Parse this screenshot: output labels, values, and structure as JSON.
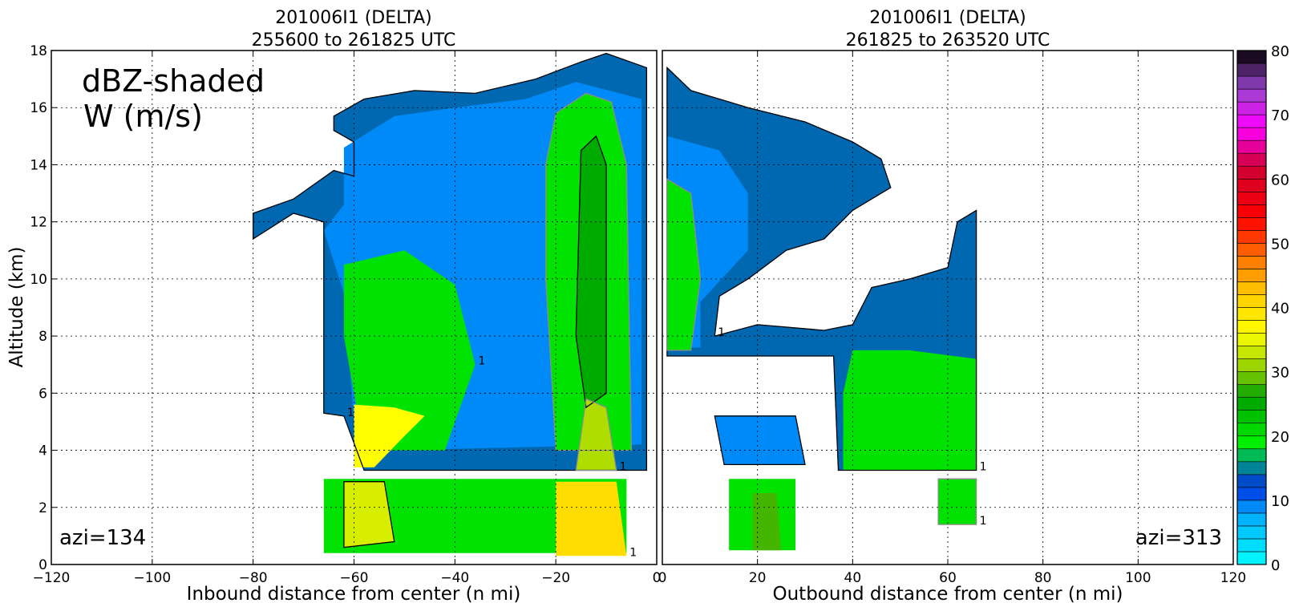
{
  "chart_data": [
    {
      "type": "heatmap",
      "title": "201006I1 (DELTA)",
      "subtitle": "255600 to 261825 UTC",
      "xlabel": "Inbound distance from center (n mi)",
      "ylabel": "Altitude (km)",
      "xlim": [
        -120,
        0
      ],
      "ylim": [
        0,
        18
      ],
      "x_ticks": [
        -120,
        -100,
        -80,
        -60,
        -40,
        -20,
        0
      ],
      "y_ticks": [
        0,
        2,
        4,
        6,
        8,
        10,
        12,
        14,
        16,
        18
      ],
      "grid": true,
      "annotation_main": "dBZ-shaded",
      "annotation_sub": "W (m/s)",
      "azimuth_label": "azi=134",
      "contour_label": "1",
      "regions": [
        {
          "dbz": 14,
          "pts": [
            [
              -64,
              15.7
            ],
            [
              -58,
              16.3
            ],
            [
              -48,
              16.6
            ],
            [
              -36,
              16.5
            ],
            [
              -24,
              17.0
            ],
            [
              -15,
              17.6
            ],
            [
              -10,
              17.9
            ],
            [
              -2,
              17.4
            ],
            [
              -2,
              3.3
            ],
            [
              -58,
              3.3
            ],
            [
              -62,
              5.2
            ],
            [
              -66,
              5.3
            ],
            [
              -66,
              12.0
            ],
            [
              -72,
              12.3
            ],
            [
              -80,
              11.4
            ],
            [
              -80,
              12.3
            ],
            [
              -72,
              12.8
            ],
            [
              -64,
              13.8
            ],
            [
              -60,
              13.6
            ],
            [
              -60,
              14.8
            ],
            [
              -64,
              15.2
            ]
          ]
        },
        {
          "dbz": 9,
          "pts": [
            [
              -62,
              14.6
            ],
            [
              -52,
              15.7
            ],
            [
              -40,
              16.0
            ],
            [
              -26,
              16.3
            ],
            [
              -16,
              16.9
            ],
            [
              -3,
              16.3
            ],
            [
              -3,
              4.2
            ],
            [
              -54,
              4.0
            ],
            [
              -60,
              5.0
            ],
            [
              -62,
              9.5
            ],
            [
              -66,
              11.7
            ],
            [
              -62,
              12.6
            ]
          ]
        },
        {
          "dbz": 20,
          "pts": [
            [
              -20,
              15.8
            ],
            [
              -14,
              16.5
            ],
            [
              -9,
              16.2
            ],
            [
              -6,
              14.0
            ],
            [
              -5,
              4.0
            ],
            [
              -20,
              4.0
            ],
            [
              -22,
              10.0
            ],
            [
              -22,
              14.0
            ]
          ]
        },
        {
          "dbz": 20,
          "pts": [
            [
              -62,
              10.5
            ],
            [
              -50,
              11.0
            ],
            [
              -40,
              9.8
            ],
            [
              -36,
              7.0
            ],
            [
              -42,
              4.0
            ],
            [
              -58,
              4.0
            ],
            [
              -62,
              8.0
            ]
          ]
        },
        {
          "dbz": 25,
          "pts": [
            [
              -15,
              14.5
            ],
            [
              -12,
              15.0
            ],
            [
              -10,
              14.0
            ],
            [
              -10,
              6.0
            ],
            [
              -14,
              5.5
            ],
            [
              -16,
              8.0
            ]
          ]
        },
        {
          "dbz": 36,
          "pts": [
            [
              -60,
              5.6
            ],
            [
              -52,
              5.5
            ],
            [
              -46,
              5.2
            ],
            [
              -50,
              4.5
            ],
            [
              -56,
              3.4
            ],
            [
              -60,
              3.4
            ]
          ]
        },
        {
          "dbz": 32,
          "pts": [
            [
              -14,
              5.8
            ],
            [
              -10,
              5.5
            ],
            [
              -8,
              3.3
            ],
            [
              -16,
              3.3
            ]
          ]
        },
        {
          "dbz": 20,
          "pts": [
            [
              -66,
              3.0
            ],
            [
              -6,
              3.0
            ],
            [
              -6,
              0.4
            ],
            [
              -66,
              0.4
            ]
          ]
        },
        {
          "dbz": 34,
          "pts": [
            [
              -62,
              2.9
            ],
            [
              -54,
              2.9
            ],
            [
              -52,
              0.8
            ],
            [
              -62,
              0.6
            ]
          ]
        },
        {
          "dbz": 40,
          "pts": [
            [
              -20,
              2.9
            ],
            [
              -8,
              2.9
            ],
            [
              -6,
              0.3
            ],
            [
              -20,
              0.3
            ]
          ]
        }
      ]
    },
    {
      "type": "heatmap",
      "title": "201006I1 (DELTA)",
      "subtitle": "261825 to 263520 UTC",
      "xlabel": "Outbound distance from center (n mi)",
      "xlim": [
        0,
        120
      ],
      "ylim": [
        0,
        18
      ],
      "x_ticks": [
        0,
        20,
        40,
        60,
        80,
        100,
        120
      ],
      "y_ticks": [
        0,
        2,
        4,
        6,
        8,
        10,
        12,
        14,
        16,
        18
      ],
      "grid": true,
      "azimuth_label": "azi=313",
      "contour_label": "1",
      "regions": [
        {
          "dbz": 14,
          "pts": [
            [
              1,
              17.4
            ],
            [
              6,
              16.6
            ],
            [
              18,
              16.0
            ],
            [
              30,
              15.5
            ],
            [
              40,
              14.8
            ],
            [
              46,
              14.2
            ],
            [
              48,
              13.2
            ],
            [
              40,
              12.4
            ],
            [
              34,
              11.4
            ],
            [
              26,
              11.0
            ],
            [
              18,
              10.0
            ],
            [
              12,
              9.4
            ],
            [
              11,
              8.0
            ],
            [
              20,
              8.4
            ],
            [
              34,
              8.2
            ],
            [
              40,
              8.4
            ],
            [
              44,
              9.7
            ],
            [
              52,
              10.0
            ],
            [
              60,
              10.4
            ],
            [
              62,
              12.0
            ],
            [
              66,
              12.4
            ],
            [
              66,
              3.3
            ],
            [
              37,
              3.3
            ],
            [
              36,
              7.3
            ],
            [
              1,
              7.3
            ]
          ]
        },
        {
          "dbz": 9,
          "pts": [
            [
              1,
              15.0
            ],
            [
              12,
              14.5
            ],
            [
              18,
              13.0
            ],
            [
              18,
              11.0
            ],
            [
              8,
              9.2
            ],
            [
              8,
              7.6
            ],
            [
              1,
              7.6
            ]
          ]
        },
        {
          "dbz": 20,
          "pts": [
            [
              1,
              13.5
            ],
            [
              6,
              13.0
            ],
            [
              8,
              10.0
            ],
            [
              6,
              7.5
            ],
            [
              1,
              7.5
            ]
          ]
        },
        {
          "dbz": 20,
          "pts": [
            [
              40,
              7.5
            ],
            [
              52,
              7.5
            ],
            [
              66,
              7.2
            ],
            [
              66,
              3.3
            ],
            [
              38,
              3.3
            ],
            [
              38,
              6.0
            ]
          ]
        },
        {
          "dbz": 9,
          "pts": [
            [
              11,
              5.2
            ],
            [
              28,
              5.2
            ],
            [
              30,
              3.5
            ],
            [
              13,
              3.5
            ]
          ]
        },
        {
          "dbz": 20,
          "pts": [
            [
              14,
              3.0
            ],
            [
              28,
              3.0
            ],
            [
              28,
              0.5
            ],
            [
              14,
              0.5
            ]
          ]
        },
        {
          "dbz": 20,
          "pts": [
            [
              58,
              3.0
            ],
            [
              66,
              3.0
            ],
            [
              66,
              1.4
            ],
            [
              58,
              1.4
            ]
          ]
        },
        {
          "dbz": 28,
          "pts": [
            [
              19,
              2.5
            ],
            [
              24,
              2.5
            ],
            [
              25,
              0.5
            ],
            [
              19,
              0.5
            ]
          ]
        }
      ]
    },
    {
      "type": "colorbar",
      "ticks": [
        0,
        10,
        20,
        30,
        40,
        50,
        60,
        70,
        80
      ],
      "vmin": 0,
      "vmax": 80,
      "step": 2
    }
  ],
  "colors": {
    "dbz_stops": [
      {
        "v": 0,
        "c": "#00ffff"
      },
      {
        "v": 8,
        "c": "#00a8ff"
      },
      {
        "v": 12,
        "c": "#0030e0"
      },
      {
        "v": 16,
        "c": "#00a080"
      },
      {
        "v": 19,
        "c": "#00ee00"
      },
      {
        "v": 26,
        "c": "#00a000"
      },
      {
        "v": 30,
        "c": "#88cc00"
      },
      {
        "v": 36,
        "c": "#ffff00"
      },
      {
        "v": 42,
        "c": "#ffcc00"
      },
      {
        "v": 48,
        "c": "#ff7000"
      },
      {
        "v": 54,
        "c": "#ff0000"
      },
      {
        "v": 62,
        "c": "#cc0033"
      },
      {
        "v": 68,
        "c": "#ff00ff"
      },
      {
        "v": 74,
        "c": "#9944cc"
      },
      {
        "v": 80,
        "c": "#000000"
      }
    ],
    "contour_dark": "#000000",
    "contour_grey": "#8c8c8c"
  }
}
